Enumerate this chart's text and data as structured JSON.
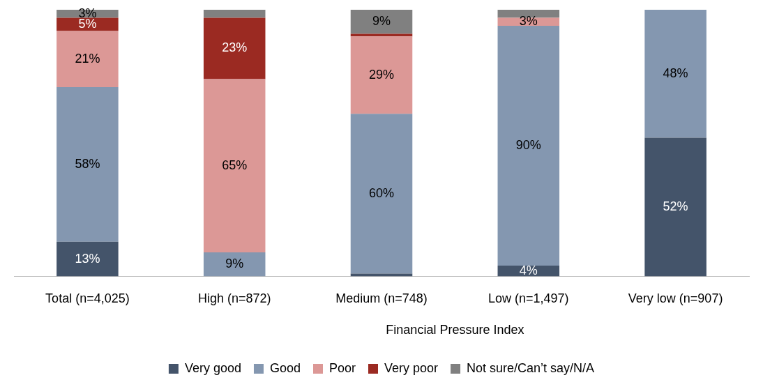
{
  "chart_data": {
    "type": "bar",
    "stacked": true,
    "legend": "bottom",
    "grid": false,
    "tick_labels": "x",
    "ylim": [
      0,
      100
    ],
    "categories": [
      "Total (n=4,025)",
      "High (n=872)",
      "Medium (n=748)",
      "Low (n=1,497)",
      "Very low (n=907)"
    ],
    "annotations": [
      "Financial Pressure Index"
    ],
    "series": [
      {
        "name": "Very good",
        "color": "#44546a",
        "values": [
          13,
          0,
          1,
          4,
          52
        ],
        "value_labels": [
          "13%",
          null,
          null,
          "4%",
          "52%"
        ]
      },
      {
        "name": "Good",
        "color": "#8497b0",
        "values": [
          58,
          9,
          60,
          90,
          48
        ],
        "value_labels": [
          "58%",
          "9%",
          "60%",
          "90%",
          "48%"
        ]
      },
      {
        "name": "Poor",
        "color": "#dc9896",
        "values": [
          21,
          65,
          29,
          3,
          0
        ],
        "value_labels": [
          "21%",
          "65%",
          "29%",
          "3%",
          null
        ]
      },
      {
        "name": "Very poor",
        "color": "#9b2a22",
        "values": [
          5,
          23,
          1,
          0,
          0
        ],
        "value_labels": [
          "5%",
          "23%",
          null,
          null,
          null
        ]
      },
      {
        "name": "Not sure/Can’t say/N/A",
        "color": "#808080",
        "values": [
          3,
          3,
          9,
          3,
          0
        ],
        "value_labels": [
          "3%",
          null,
          "9%",
          null,
          null
        ]
      }
    ]
  }
}
